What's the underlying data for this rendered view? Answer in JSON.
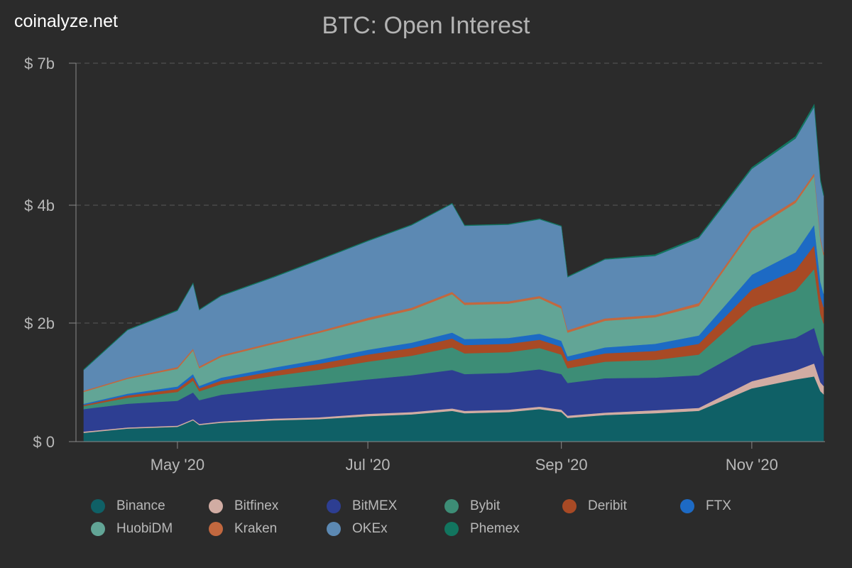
{
  "brand": "coinalyze.net",
  "chart_data": {
    "type": "area",
    "stacked": true,
    "title": "BTC: Open Interest",
    "x_range": [
      "2020-04-01",
      "2020-11-24"
    ],
    "x_ticks": [
      {
        "date": "2020-05-01",
        "label": "May '20"
      },
      {
        "date": "2020-07-01",
        "label": "Jul '20"
      },
      {
        "date": "2020-09-01",
        "label": "Sep '20"
      },
      {
        "date": "2020-11-01",
        "label": "Nov '20"
      }
    ],
    "y_ticks": [
      {
        "value": 0,
        "label": "$ 0"
      },
      {
        "value": 2,
        "label": "$ 2b"
      },
      {
        "value": 4,
        "label": "$ 4b"
      },
      {
        "value": 7,
        "label": "$ 7b"
      }
    ],
    "ylim": [
      0,
      7
    ],
    "y_unit": "billion USD",
    "grid": "horizontal dashed",
    "legend": "bottom",
    "x": [
      "2020-04-01",
      "2020-04-15",
      "2020-05-01",
      "2020-05-06",
      "2020-05-08",
      "2020-05-15",
      "2020-06-01",
      "2020-06-15",
      "2020-07-01",
      "2020-07-15",
      "2020-07-28",
      "2020-08-01",
      "2020-08-15",
      "2020-08-25",
      "2020-09-01",
      "2020-09-03",
      "2020-09-15",
      "2020-10-01",
      "2020-10-15",
      "2020-11-01",
      "2020-11-15",
      "2020-11-21",
      "2020-11-23",
      "2020-11-24"
    ],
    "series": [
      {
        "name": "Binance",
        "color": "#0f6066",
        "values": [
          0.15,
          0.22,
          0.25,
          0.36,
          0.28,
          0.32,
          0.36,
          0.38,
          0.43,
          0.46,
          0.52,
          0.48,
          0.5,
          0.55,
          0.5,
          0.4,
          0.45,
          0.48,
          0.52,
          0.9,
          1.05,
          1.1,
          0.85,
          0.8
        ]
      },
      {
        "name": "Bitfinex",
        "color": "#d1aca3",
        "values": [
          0.02,
          0.02,
          0.02,
          0.02,
          0.02,
          0.02,
          0.03,
          0.03,
          0.04,
          0.04,
          0.04,
          0.04,
          0.04,
          0.04,
          0.04,
          0.04,
          0.04,
          0.05,
          0.05,
          0.12,
          0.15,
          0.22,
          0.15,
          0.14
        ]
      },
      {
        "name": "BitMEX",
        "color": "#2d3e92",
        "values": [
          0.38,
          0.4,
          0.42,
          0.45,
          0.4,
          0.45,
          0.5,
          0.55,
          0.58,
          0.62,
          0.65,
          0.62,
          0.62,
          0.63,
          0.6,
          0.55,
          0.58,
          0.55,
          0.55,
          0.6,
          0.55,
          0.6,
          0.55,
          0.5
        ]
      },
      {
        "name": "Bybit",
        "color": "#3d8d76",
        "values": [
          0.05,
          0.1,
          0.15,
          0.2,
          0.15,
          0.18,
          0.22,
          0.25,
          0.3,
          0.33,
          0.38,
          0.35,
          0.35,
          0.36,
          0.33,
          0.25,
          0.28,
          0.3,
          0.35,
          0.65,
          0.8,
          1.0,
          0.6,
          0.55
        ]
      },
      {
        "name": "Deribit",
        "color": "#a84a25",
        "values": [
          0.02,
          0.04,
          0.05,
          0.06,
          0.05,
          0.06,
          0.08,
          0.1,
          0.12,
          0.13,
          0.15,
          0.14,
          0.14,
          0.14,
          0.13,
          0.12,
          0.14,
          0.15,
          0.18,
          0.3,
          0.35,
          0.4,
          0.3,
          0.28
        ]
      },
      {
        "name": "FTX",
        "color": "#1d6ac4",
        "values": [
          0.02,
          0.03,
          0.04,
          0.05,
          0.04,
          0.05,
          0.06,
          0.07,
          0.08,
          0.09,
          0.1,
          0.1,
          0.1,
          0.1,
          0.1,
          0.08,
          0.1,
          0.12,
          0.14,
          0.25,
          0.3,
          0.35,
          0.25,
          0.23
        ]
      },
      {
        "name": "HuobiDM",
        "color": "#62a596",
        "values": [
          0.2,
          0.25,
          0.3,
          0.4,
          0.3,
          0.35,
          0.4,
          0.45,
          0.5,
          0.55,
          0.65,
          0.58,
          0.58,
          0.6,
          0.55,
          0.4,
          0.45,
          0.45,
          0.5,
          0.75,
          0.85,
          0.95,
          0.7,
          0.65
        ]
      },
      {
        "name": "Kraken",
        "color": "#c2683f",
        "values": [
          0.02,
          0.02,
          0.03,
          0.03,
          0.03,
          0.03,
          0.03,
          0.03,
          0.04,
          0.04,
          0.04,
          0.04,
          0.04,
          0.04,
          0.04,
          0.04,
          0.04,
          0.04,
          0.05,
          0.05,
          0.06,
          0.06,
          0.05,
          0.05
        ]
      },
      {
        "name": "OKEx",
        "color": "#5c89b3",
        "values": [
          0.35,
          0.8,
          0.95,
          1.1,
          0.95,
          1.0,
          1.1,
          1.2,
          1.3,
          1.4,
          1.5,
          1.3,
          1.3,
          1.3,
          1.35,
          0.9,
          1.0,
          1.0,
          1.1,
          1.15,
          1.3,
          1.4,
          1.05,
          1.0
        ]
      },
      {
        "name": "Phemex",
        "color": "#12755f",
        "values": [
          0.01,
          0.01,
          0.01,
          0.01,
          0.01,
          0.01,
          0.01,
          0.01,
          0.01,
          0.01,
          0.01,
          0.01,
          0.01,
          0.01,
          0.01,
          0.01,
          0.01,
          0.02,
          0.02,
          0.03,
          0.04,
          0.05,
          0.04,
          0.04
        ]
      }
    ]
  }
}
